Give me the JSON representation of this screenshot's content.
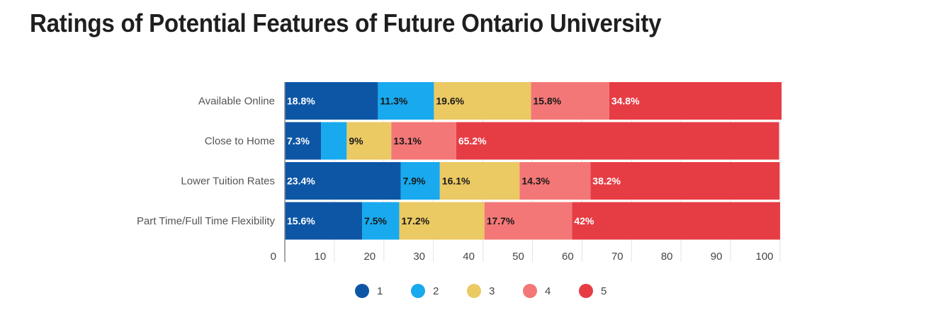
{
  "title": "Ratings of Potential Features of Future Ontario University",
  "chart_data": {
    "type": "bar",
    "orientation": "horizontal",
    "stacked": true,
    "title": "Ratings of Potential Features of Future Ontario University",
    "categories": [
      "Available Online",
      "Close to Home",
      "Lower Tuition Rates",
      "Part Time/Full Time Flexibility"
    ],
    "xlim": [
      0,
      100
    ],
    "xticks": [
      0,
      10,
      20,
      30,
      40,
      50,
      60,
      70,
      80,
      90,
      100
    ],
    "legend_position": "bottom",
    "series": [
      {
        "name": "1",
        "color": "#0d56a6",
        "label_color": "#ffffff",
        "values": [
          18.8,
          7.3,
          23.4,
          15.6
        ],
        "labels": [
          "18.8%",
          "7.3%",
          "23.4%",
          "15.6%"
        ]
      },
      {
        "name": "2",
        "color": "#18a9ee",
        "label_color": "#1a1a1a",
        "values": [
          11.3,
          5.2,
          7.9,
          7.5
        ],
        "labels": [
          "11.3%",
          "",
          "7.9%",
          "7.5%"
        ]
      },
      {
        "name": "3",
        "color": "#ebc963",
        "label_color": "#1a1a1a",
        "values": [
          19.6,
          9,
          16.1,
          17.2
        ],
        "labels": [
          "19.6%",
          "9%",
          "16.1%",
          "17.2%"
        ]
      },
      {
        "name": "4",
        "color": "#f47777",
        "label_color": "#1a1a1a",
        "values": [
          15.8,
          13.1,
          14.3,
          17.7
        ],
        "labels": [
          "15.8%",
          "13.1%",
          "14.3%",
          "17.7%"
        ]
      },
      {
        "name": "5",
        "color": "#e63d45",
        "label_color": "#ffffff",
        "values": [
          34.8,
          65.2,
          38.2,
          42
        ],
        "labels": [
          "34.8%",
          "65.2%",
          "38.2%",
          "42%"
        ]
      }
    ]
  }
}
